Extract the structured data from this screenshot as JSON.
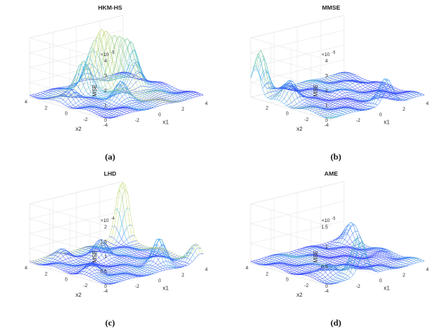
{
  "colors": {
    "mesh_low": "#2b2bff",
    "mesh_mid": "#33b5e5",
    "mesh_high": "#f0e442",
    "grid": "#e4e4e4",
    "axis": "#888888"
  },
  "chart_data": [
    {
      "type": "surface",
      "title": "HKM-HS",
      "caption": "(a)",
      "zlabel": "MSE",
      "xlabel": "x1",
      "ylabel": "x2",
      "zscale_label": "×10",
      "zscale_exp": "-5",
      "xticks": [
        "-2",
        "0",
        "2",
        "4"
      ],
      "yticks": [
        "4",
        "2",
        "0",
        "-2",
        "-4"
      ],
      "zticks": [
        "0",
        "1",
        "2",
        "3",
        "4"
      ],
      "zlim": [
        0,
        4
      ],
      "peaks": [
        {
          "x1": 1.0,
          "x2": 2.5,
          "height": 3.2
        },
        {
          "x1": 1.8,
          "x2": 2.0,
          "height": 2.6
        },
        {
          "x1": 2.6,
          "x2": 1.5,
          "height": 2.4
        },
        {
          "x1": 0.2,
          "x2": 2.8,
          "height": 2.0
        },
        {
          "x1": -1.0,
          "x2": 2.2,
          "height": 2.0
        },
        {
          "x1": 2.0,
          "x2": 0.5,
          "height": 1.6
        },
        {
          "x1": -0.5,
          "x2": -1.0,
          "height": 1.2
        },
        {
          "x1": -3.0,
          "x2": 1.0,
          "height": 0.8
        }
      ]
    },
    {
      "type": "surface",
      "title": "MMSE",
      "caption": "(b)",
      "zlabel": "MSE",
      "xlabel": "x1",
      "ylabel": "x2",
      "zscale_label": "×10",
      "zscale_exp": "-5",
      "xticks": [
        "-2",
        "0",
        "2",
        "4"
      ],
      "yticks": [
        "2",
        "0",
        "-2",
        "-4"
      ],
      "zticks": [
        "0",
        "1",
        "2",
        "3",
        "4"
      ],
      "zlim": [
        0,
        4
      ],
      "peaks": [
        {
          "x1": -3.6,
          "x2": 3.5,
          "height": 3.2
        },
        {
          "x1": -3.0,
          "x2": 1.2,
          "height": 1.3
        },
        {
          "x1": -2.3,
          "x2": 2.2,
          "height": 0.9
        },
        {
          "x1": 1.0,
          "x2": -3.7,
          "height": 1.6
        },
        {
          "x1": 0.0,
          "x2": 0.0,
          "height": 0.3
        },
        {
          "x1": 2.5,
          "x2": 1.0,
          "height": 0.25
        }
      ]
    },
    {
      "type": "surface",
      "title": "LHD",
      "caption": "(c)",
      "zlabel": "MSE",
      "xlabel": "x1",
      "ylabel": "x2",
      "zscale_label": "×10",
      "zscale_exp": "-4",
      "xticks": [
        "-2",
        "0",
        "2",
        "4"
      ],
      "yticks": [
        "4",
        "2",
        "0",
        "-2",
        "-4"
      ],
      "zticks": [
        "0",
        "0.5",
        "1",
        "1.5",
        "2"
      ],
      "zlim": [
        0,
        2
      ],
      "peaks": [
        {
          "x1": 3.8,
          "x2": 3.8,
          "height": 2.0
        },
        {
          "x1": 1.5,
          "x2": -2.5,
          "height": 0.9
        },
        {
          "x1": 0.0,
          "x2": 1.5,
          "height": 0.6
        },
        {
          "x1": 3.8,
          "x2": -3.5,
          "height": 0.5
        },
        {
          "x1": -3.0,
          "x2": -1.0,
          "height": 0.35
        },
        {
          "x1": -2.0,
          "x2": 3.0,
          "height": 0.25
        }
      ]
    },
    {
      "type": "surface",
      "title": "AME",
      "caption": "(d)",
      "zlabel": "MSE",
      "xlabel": "x1",
      "ylabel": "x2",
      "zscale_label": "×10",
      "zscale_exp": "-5",
      "xticks": [
        "-2",
        "0",
        "2",
        "4"
      ],
      "yticks": [
        "4",
        "2",
        "0",
        "-2",
        "-4"
      ],
      "zticks": [
        "0",
        "0.5",
        "1",
        "1.5"
      ],
      "zlim": [
        0,
        1.5
      ],
      "peaks": [
        {
          "x1": -1.2,
          "x2": -3.5,
          "height": 1.05
        },
        {
          "x1": -2.5,
          "x2": -2.0,
          "height": 0.3
        },
        {
          "x1": 3.8,
          "x2": 3.0,
          "height": 0.45
        },
        {
          "x1": 3.0,
          "x2": -1.0,
          "height": 0.1
        }
      ]
    }
  ]
}
